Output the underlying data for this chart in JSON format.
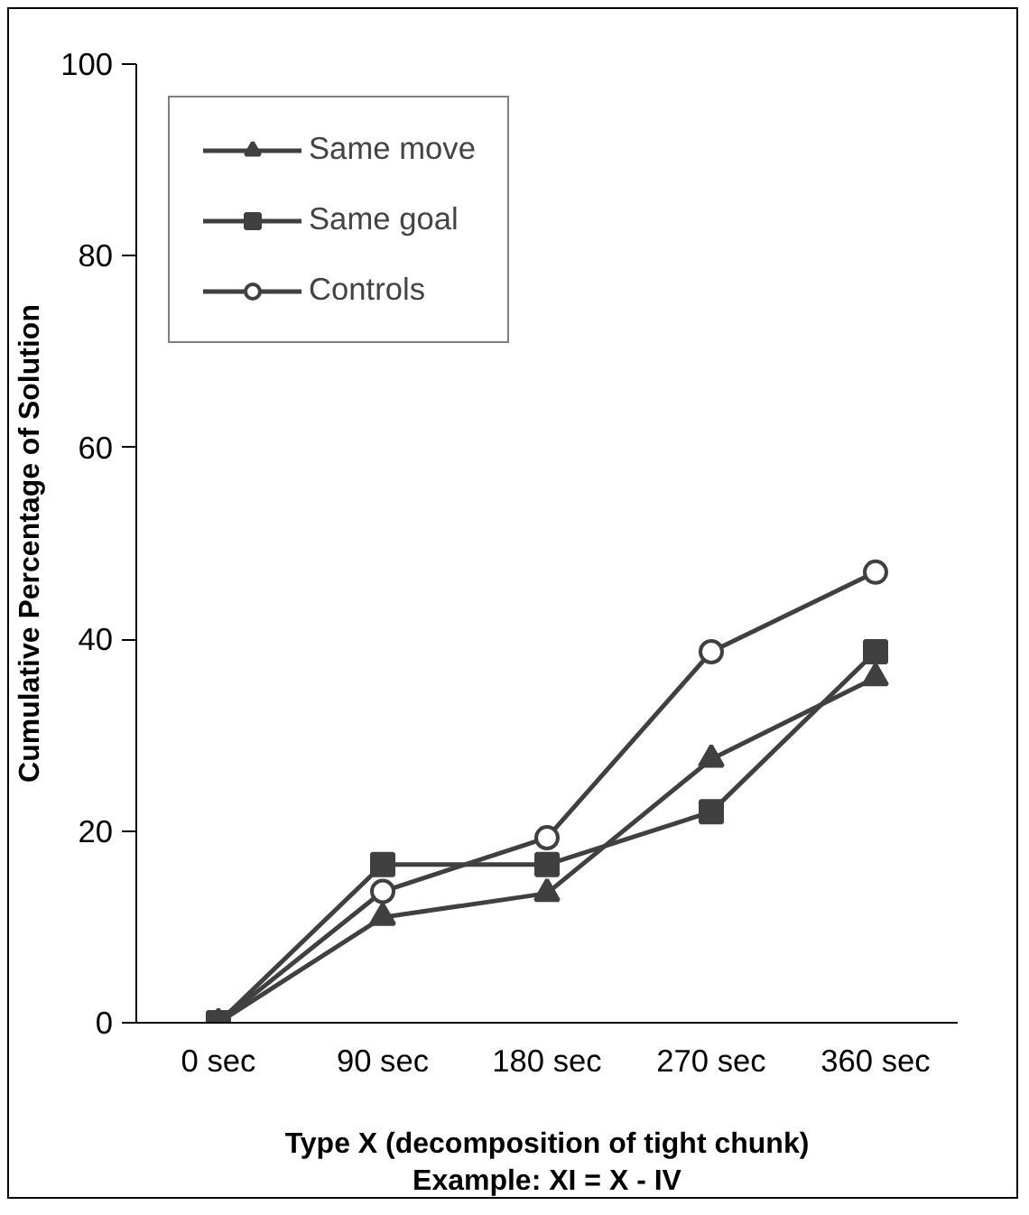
{
  "chart_data": {
    "type": "line",
    "xlabel": "Type X (decomposition of tight chunk)\nExample: XI = X - IV",
    "ylabel": "Cumulative Percentage of Solution",
    "categories": [
      "0 sec",
      "90 sec",
      "180 sec",
      "270 sec",
      "360 sec"
    ],
    "ylim": [
      0,
      100
    ],
    "yticks": [
      0,
      20,
      40,
      60,
      80,
      100
    ],
    "grid": false,
    "legend": "top left",
    "line_style": "solid",
    "series": [
      {
        "name": "Same move",
        "color": "#404040",
        "marker": "triangle",
        "values": [
          0,
          11,
          13.5,
          27.5,
          36
        ]
      },
      {
        "name": "Same goal",
        "color": "#404040",
        "marker": "square",
        "values": [
          0,
          16.5,
          16.5,
          22,
          38.7
        ]
      },
      {
        "name": "Controls",
        "color": "#404040",
        "marker": "circle",
        "values": [
          0,
          13.7,
          19.3,
          38.7,
          47
        ]
      }
    ]
  }
}
